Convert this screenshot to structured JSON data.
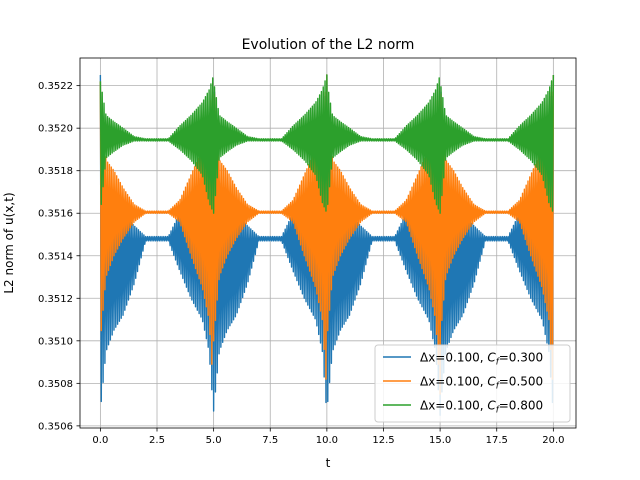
{
  "chart_data": {
    "type": "line",
    "title": "Evolution of the L2 norm",
    "xlabel": "t",
    "ylabel": "L2 norm of u(x,t)",
    "xlim": [
      -0.9,
      21.0
    ],
    "ylim": [
      0.35059,
      0.35233
    ],
    "xticks": [
      0.0,
      2.5,
      5.0,
      7.5,
      10.0,
      12.5,
      15.0,
      17.5,
      20.0
    ],
    "xtick_labels": [
      "0.0",
      "2.5",
      "5.0",
      "7.5",
      "10.0",
      "12.5",
      "15.0",
      "17.5",
      "20.0"
    ],
    "yticks": [
      0.3506,
      0.3508,
      0.351,
      0.3512,
      0.3514,
      0.3516,
      0.3518,
      0.352,
      0.3522
    ],
    "ytick_labels": [
      "0.3506",
      "0.3508",
      "0.3510",
      "0.3512",
      "0.3514",
      "0.3516",
      "0.3518",
      "0.3520",
      "0.3522"
    ],
    "grid": true,
    "legend_position": "lower-right",
    "period": 5.0,
    "t_range": [
      0.0,
      20.0
    ],
    "series": [
      {
        "legend_prefix": "Δx=0.100, ",
        "legend_cf": "C",
        "legend_sub": "f",
        "legend_suffix": "=0.300",
        "color": "#1f77b4",
        "baseline": 0.35147,
        "profile_t": [
          0.0,
          0.25,
          0.6,
          1.0,
          1.5,
          2.0,
          2.5,
          3.0,
          3.5,
          4.0,
          4.5,
          4.8,
          5.0
        ],
        "profile_min": [
          0.35067,
          0.35095,
          0.35105,
          0.35112,
          0.35127,
          0.35147,
          0.35147,
          0.35147,
          0.35133,
          0.3512,
          0.3511,
          0.35095,
          0.35065
        ],
        "profile_max": [
          0.35225,
          0.35175,
          0.35165,
          0.3516,
          0.35154,
          0.35149,
          0.35149,
          0.35149,
          0.3516,
          0.3517,
          0.35178,
          0.352,
          0.35225
        ]
      },
      {
        "legend_prefix": "Δx=0.100, ",
        "legend_cf": "C",
        "legend_sub": "f",
        "legend_suffix": "=0.500",
        "color": "#ff7f0e",
        "baseline": 0.3516,
        "profile_t": [
          0.0,
          0.25,
          0.6,
          1.0,
          1.5,
          2.0,
          2.5,
          3.0,
          3.5,
          4.0,
          4.5,
          4.8,
          5.0
        ],
        "profile_min": [
          0.351,
          0.3513,
          0.3514,
          0.35148,
          0.35156,
          0.3516,
          0.3516,
          0.3516,
          0.35156,
          0.3514,
          0.35125,
          0.3511,
          0.35075
        ],
        "profile_max": [
          0.35222,
          0.35185,
          0.3518,
          0.35172,
          0.35164,
          0.35161,
          0.35161,
          0.35161,
          0.35166,
          0.35178,
          0.3519,
          0.35205,
          0.35225
        ]
      },
      {
        "legend_prefix": "Δx=0.100, ",
        "legend_cf": "C",
        "legend_sub": "f",
        "legend_suffix": "=0.800",
        "color": "#2ca02c",
        "baseline": 0.35194,
        "profile_t": [
          0.0,
          0.25,
          0.6,
          1.0,
          1.5,
          2.0,
          2.5,
          3.0,
          3.5,
          4.0,
          4.5,
          4.8,
          5.0
        ],
        "profile_min": [
          0.3516,
          0.35186,
          0.35189,
          0.35192,
          0.35194,
          0.35194,
          0.35194,
          0.35194,
          0.3519,
          0.35185,
          0.35178,
          0.35165,
          0.3516
        ],
        "profile_max": [
          0.35222,
          0.35206,
          0.35203,
          0.352,
          0.35196,
          0.35195,
          0.35195,
          0.35195,
          0.35201,
          0.35206,
          0.35212,
          0.35218,
          0.35225
        ]
      }
    ]
  }
}
